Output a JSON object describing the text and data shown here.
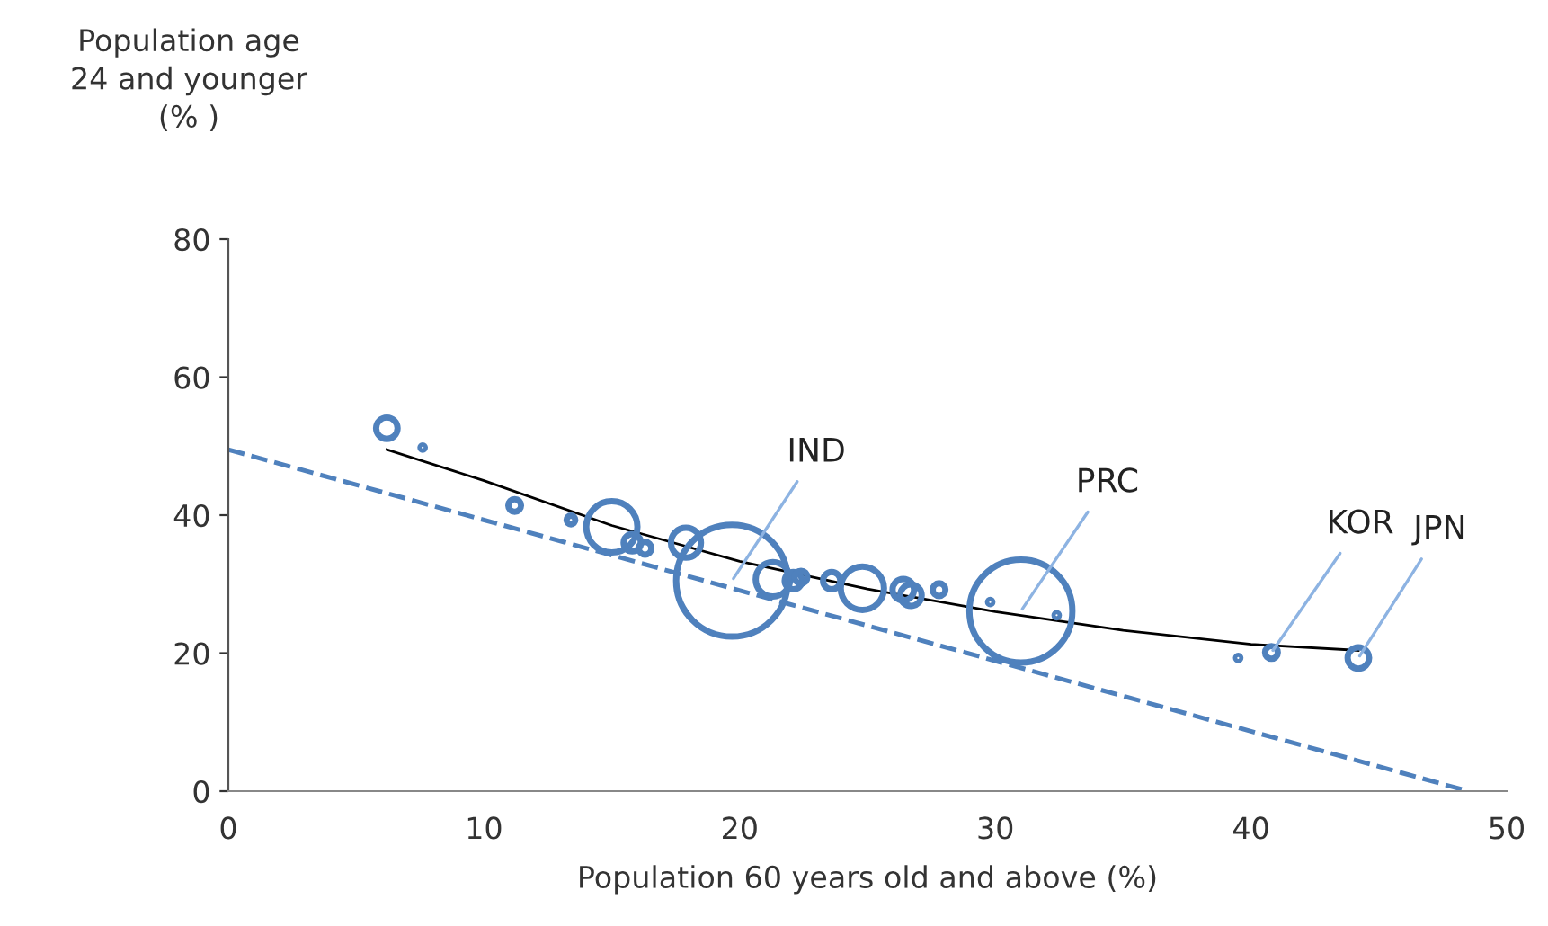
{
  "chart_data": {
    "type": "bubble",
    "xlabel": "Population 60 years old and above (%)",
    "ylabel": "Population age\n24 and younger\n(% )",
    "xlim": [
      0,
      50
    ],
    "xticks": [
      0,
      10,
      20,
      30,
      40,
      50
    ],
    "ylim": [
      0,
      80
    ],
    "yticks": [
      0,
      20,
      40,
      60,
      80
    ],
    "grid": false,
    "series": [
      {
        "color": "#4f81bd",
        "marker": "circle",
        "x": [
          6.2,
          7.6,
          11.2,
          13.4,
          15.0,
          15.8,
          16.3,
          17.9,
          19.7,
          21.3,
          22.1,
          22.4,
          23.6,
          24.8,
          26.4,
          26.7,
          27.8,
          29.8,
          31.0,
          32.4,
          39.5,
          40.8,
          44.2
        ],
        "values": [
          52.6,
          49.8,
          41.4,
          39.3,
          38.3,
          36.0,
          35.2,
          36.0,
          30.5,
          30.7,
          30.5,
          31.0,
          30.5,
          29.4,
          29.2,
          28.4,
          29.2,
          27.4,
          26.1,
          25.5,
          19.3,
          20.1,
          19.3
        ],
        "sizes": [
          0.037,
          0.0015,
          0.013,
          0.006,
          0.21,
          0.024,
          0.013,
          0.072,
          1,
          0.095,
          0.024,
          0.013,
          0.024,
          0.15,
          0.037,
          0.037,
          0.013,
          0.0015,
          0.85,
          0.0015,
          0.0015,
          0.013,
          0.037
        ]
      },
      {
        "type": "line",
        "color": "#000000",
        "line_style": "solid",
        "x": [
          6.2,
          10,
          15,
          20,
          25,
          30,
          35,
          40,
          44.2
        ],
        "values": [
          49.5,
          45,
          38.5,
          33.3,
          29.3,
          26.0,
          23.3,
          21.3,
          20.4
        ]
      },
      {
        "type": "line",
        "color": "#4f81bd",
        "line_style": "dashed",
        "x": [
          0,
          48.5
        ],
        "values": [
          49.5,
          0
        ]
      }
    ],
    "annotations": [
      {
        "text": "IND",
        "x": 19.7,
        "y": 30.5
      },
      {
        "text": "PRC",
        "x": 31.0,
        "y": 26.1
      },
      {
        "text": "KOR",
        "x": 40.8,
        "y": 20.1
      },
      {
        "text": "JPN",
        "x": 44.2,
        "y": 19.3
      }
    ]
  }
}
